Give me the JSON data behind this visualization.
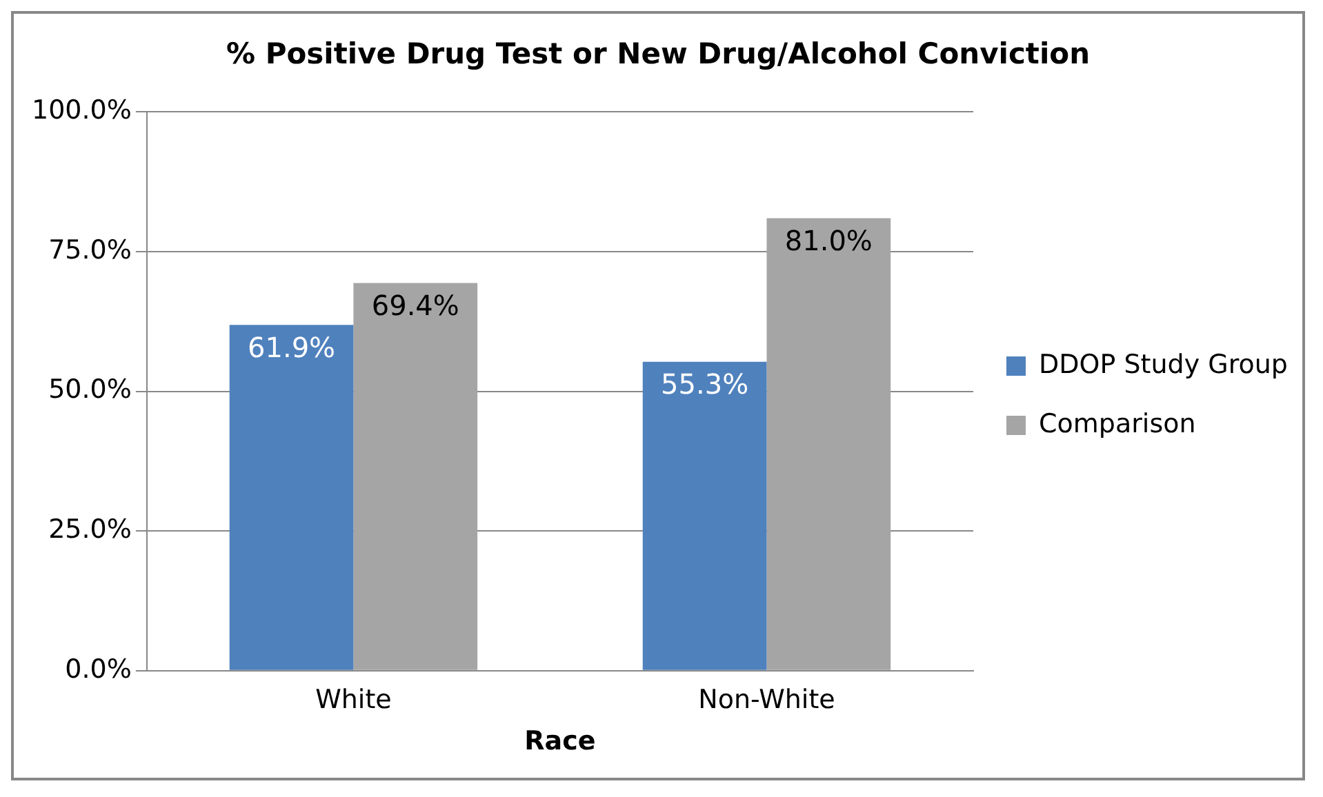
{
  "chart_data": {
    "type": "bar",
    "title": "% Positive Drug Test or New Drug/Alcohol Conviction",
    "xlabel": "Race",
    "categories": [
      "White",
      "Non-White"
    ],
    "series": [
      {
        "name": "DDOP Study Group",
        "color": "#4f81bd",
        "values": [
          61.9,
          55.3
        ],
        "value_labels": [
          "61.9%",
          "55.3%"
        ]
      },
      {
        "name": "Comparison",
        "color": "#a5a5a5",
        "values": [
          69.4,
          81.0
        ],
        "value_labels": [
          "69.4%",
          "81.0%"
        ]
      }
    ],
    "ylim": [
      0,
      100
    ],
    "yticks": [
      {
        "value": 0,
        "label": "0.0%"
      },
      {
        "value": 25,
        "label": "25.0%"
      },
      {
        "value": 50,
        "label": "50.0%"
      },
      {
        "value": 75,
        "label": "75.0%"
      },
      {
        "value": 100,
        "label": "100.0%"
      }
    ],
    "grid": "y",
    "legend": "right"
  }
}
